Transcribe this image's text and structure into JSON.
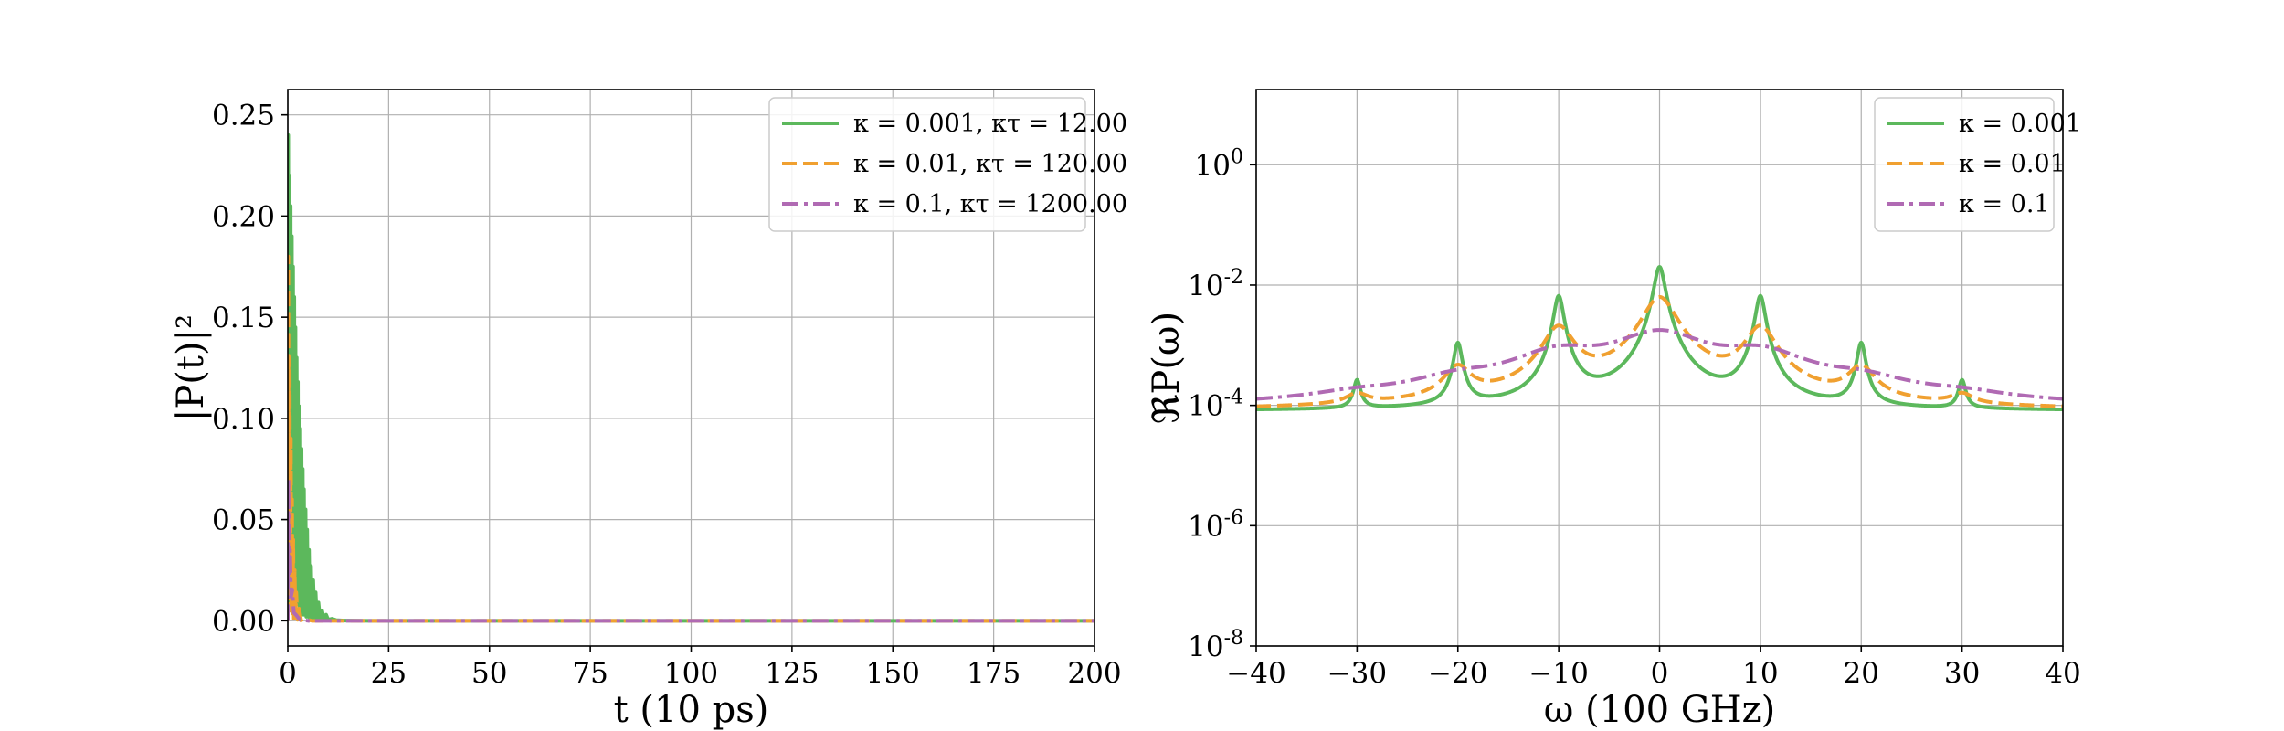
{
  "chart_data": [
    {
      "type": "line",
      "xlabel": "t (10 ps)",
      "ylabel": "|P(t)|²",
      "xlim": [
        0,
        200
      ],
      "ylim": [
        -0.0125,
        0.2625
      ],
      "xticks": [
        0,
        25,
        50,
        75,
        100,
        125,
        150,
        175,
        200
      ],
      "yticks": [
        0.0,
        0.05,
        0.1,
        0.15,
        0.2,
        0.25
      ],
      "ytick_labels": [
        "0.00",
        "0.05",
        "0.10",
        "0.15",
        "0.20",
        "0.25"
      ],
      "grid": true,
      "legend_position": "top-right",
      "series": [
        {
          "name": "κ = 0.001, κτ = 12.00",
          "color": "#5cb85c",
          "dash": "solid",
          "x": [
            0,
            0.1,
            0.25,
            0.4,
            0.55,
            0.7,
            0.85,
            1.0,
            1.15,
            1.3,
            1.45,
            1.6,
            1.75,
            1.9,
            2.05,
            2.2,
            2.35,
            2.5,
            2.65,
            2.8,
            2.95,
            3.1,
            3.25,
            3.4,
            3.55,
            3.7,
            3.85,
            4.0,
            4.2,
            4.4,
            4.6,
            4.8,
            5.0,
            5.25,
            5.5,
            5.75,
            6.0,
            6.3,
            6.6,
            6.9,
            7.2,
            7.6,
            8.0,
            8.5,
            9.0,
            9.5,
            10.0,
            11,
            12,
            14,
            20,
            50,
            100,
            150,
            200
          ],
          "y": [
            0.0,
            0.24,
            0.08,
            0.22,
            0.04,
            0.205,
            0.02,
            0.19,
            0.03,
            0.175,
            0.02,
            0.16,
            0.015,
            0.145,
            0.01,
            0.13,
            0.012,
            0.118,
            0.008,
            0.106,
            0.006,
            0.095,
            0.005,
            0.085,
            0.004,
            0.075,
            0.003,
            0.065,
            0.003,
            0.055,
            0.002,
            0.045,
            0.002,
            0.035,
            0.001,
            0.027,
            0.001,
            0.02,
            0.001,
            0.014,
            0.0008,
            0.009,
            0.0006,
            0.005,
            0.0004,
            0.003,
            0.0005,
            0.001,
            0.0003,
            0.0001,
            0.0,
            0.0,
            0.0,
            0.0,
            0.0
          ]
        },
        {
          "name": "κ = 0.01, κτ = 120.00",
          "color": "#f0a030",
          "dash": "dashed",
          "x": [
            0,
            0.12,
            0.3,
            0.45,
            0.6,
            0.75,
            0.9,
            1.05,
            1.2,
            1.35,
            1.5,
            1.7,
            1.9,
            2.1,
            2.4,
            2.8,
            3.3,
            4,
            6,
            10,
            50,
            100,
            150,
            200
          ],
          "y": [
            0.0,
            0.18,
            0.01,
            0.13,
            0.005,
            0.09,
            0.003,
            0.06,
            0.002,
            0.04,
            0.001,
            0.025,
            0.001,
            0.014,
            0.0005,
            0.006,
            0.0002,
            0.001,
            0.0,
            0.0,
            0.0,
            0.0,
            0.0,
            0.0
          ]
        },
        {
          "name": "κ = 0.1, κτ = 1200.00",
          "color": "#b06ab3",
          "dash": "dashdot",
          "x": [
            0,
            0.15,
            0.35,
            0.55,
            0.8,
            1.1,
            1.5,
            2.0,
            3.0,
            5,
            50,
            100,
            150,
            200
          ],
          "y": [
            0.0,
            0.07,
            0.02,
            0.035,
            0.012,
            0.015,
            0.004,
            0.003,
            0.0005,
            0.0,
            0.0,
            0.0,
            0.0,
            0.0
          ]
        }
      ]
    },
    {
      "type": "line",
      "xlabel": "ω (100 GHz)",
      "ylabel": "ℜP(ω)",
      "xlim": [
        -40,
        40
      ],
      "ylim_log10": [
        -8,
        1.25
      ],
      "yscale": "log",
      "xticks": [
        -40,
        -30,
        -20,
        -10,
        0,
        10,
        20,
        30,
        40
      ],
      "xtick_labels": [
        "−40",
        "−30",
        "−20",
        "−10",
        "0",
        "10",
        "20",
        "30",
        "40"
      ],
      "yticks_log10": [
        -8,
        -6,
        -4,
        -2,
        0
      ],
      "ytick_labels": [
        "10-8",
        "10-6",
        "10-4",
        "10-2",
        "100"
      ],
      "grid": true,
      "legend_position": "top-right",
      "series": [
        {
          "name": "κ = 0.001",
          "color": "#5cb85c",
          "dash": "solid",
          "baseline": 8e-05,
          "peaks": [
            {
              "center": -30,
              "height": 0.000175,
              "width": 0.35
            },
            {
              "center": -20,
              "height": 0.001,
              "width": 0.4
            },
            {
              "center": -10,
              "height": 0.0065,
              "width": 0.45
            },
            {
              "center": 0,
              "height": 0.02,
              "width": 0.5
            },
            {
              "center": 10,
              "height": 0.0065,
              "width": 0.45
            },
            {
              "center": 20,
              "height": 0.001,
              "width": 0.4
            },
            {
              "center": 30,
              "height": 0.000175,
              "width": 0.35
            }
          ]
        },
        {
          "name": "κ = 0.01",
          "color": "#f0a030",
          "dash": "dashed",
          "baseline": 8e-05,
          "peaks": [
            {
              "center": -30,
              "height": 5e-05,
              "width": 1.2
            },
            {
              "center": -20,
              "height": 0.00032,
              "width": 1.3
            },
            {
              "center": -10,
              "height": 0.0019,
              "width": 1.4
            },
            {
              "center": 0,
              "height": 0.0062,
              "width": 1.5
            },
            {
              "center": 10,
              "height": 0.0019,
              "width": 1.4
            },
            {
              "center": 20,
              "height": 0.00032,
              "width": 1.3
            },
            {
              "center": 30,
              "height": 5e-05,
              "width": 1.2
            }
          ]
        },
        {
          "name": "κ = 0.1",
          "color": "#b06ab3",
          "dash": "dashdot",
          "baseline": 8e-05,
          "peaks": [
            {
              "center": -30,
              "height": 3e-05,
              "width": 4.5
            },
            {
              "center": -20,
              "height": 0.00012,
              "width": 4.5
            },
            {
              "center": -10,
              "height": 0.0006,
              "width": 4.5
            },
            {
              "center": 0,
              "height": 0.0015,
              "width": 4.5
            },
            {
              "center": 10,
              "height": 0.0006,
              "width": 4.5
            },
            {
              "center": 20,
              "height": 0.00012,
              "width": 4.5
            },
            {
              "center": 30,
              "height": 3e-05,
              "width": 4.5
            }
          ]
        }
      ]
    }
  ]
}
